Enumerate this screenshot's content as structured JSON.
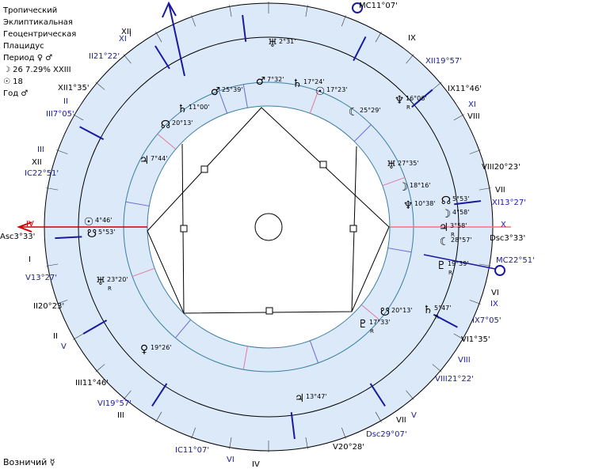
{
  "info": {
    "line1": "Тропический",
    "line2": "Эклиптикальная",
    "line3": "Геоцентрическая",
    "line4": "Плацидус",
    "period_label": "Период",
    "period_glyphs": "♀ ♂",
    "moon_line": "☽  26 7.29% XXIII",
    "sun_line": "☉  18",
    "year_label": "Год",
    "year_glyph": "♂"
  },
  "footer": {
    "label": "Возничий",
    "glyph": "☿"
  },
  "angles": {
    "asc": "Asc3°33'",
    "dsc_right": "Dsc3°33'",
    "mc_top": "MC11°07'",
    "ic_left": "IC22°51'",
    "mc_right": "MC22°51'",
    "ic_bottom": "IC11°07'",
    "dsc_bottom": "Dsc29°07'"
  },
  "outer_cusps": [
    {
      "text": "XI",
      "c": "#1a1aa0"
    },
    {
      "text": "I",
      "c": "#1a1aa0"
    },
    {
      "text": "XII",
      "c": "#000000"
    },
    {
      "text": "II21°22'",
      "c": "#1a1aa0"
    },
    {
      "text": "XII1°35'",
      "c": "#000000"
    },
    {
      "text": "II",
      "c": "#1a1aa0"
    },
    {
      "text": "III7°05'",
      "c": "#1a1aa0"
    },
    {
      "text": "III",
      "c": "#1a1aa0"
    },
    {
      "text": "XII",
      "c": "#000000"
    },
    {
      "text": "IV",
      "c": "#cc0000"
    },
    {
      "text": "I",
      "c": "#000000"
    },
    {
      "text": "V13°27'",
      "c": "#1a1aa0"
    },
    {
      "text": "II20°23'",
      "c": "#000000"
    },
    {
      "text": "II",
      "c": "#000000"
    },
    {
      "text": "V",
      "c": "#1a1aa0"
    },
    {
      "text": "III11°46'",
      "c": "#000000"
    },
    {
      "text": "VI19°57'",
      "c": "#1a1aa0"
    },
    {
      "text": "III",
      "c": "#000000"
    },
    {
      "text": "VI",
      "c": "#1a1aa0"
    },
    {
      "text": "IV",
      "c": "#000000"
    },
    {
      "text": "V20°28'",
      "c": "#000000"
    },
    {
      "text": "VII",
      "c": "#000000"
    },
    {
      "text": "V",
      "c": "#1a1aa0"
    },
    {
      "text": "VIII21°22'",
      "c": "#1a1aa0"
    },
    {
      "text": "VIII",
      "c": "#1a1aa0"
    },
    {
      "text": "VI1°35'",
      "c": "#000000"
    },
    {
      "text": "IX7°05'",
      "c": "#1a1aa0"
    },
    {
      "text": "IX",
      "c": "#1a1aa0"
    },
    {
      "text": "VI",
      "c": "#000000"
    },
    {
      "text": "X",
      "c": "#1a1aa0"
    },
    {
      "text": "XI13°27'",
      "c": "#1a1aa0"
    },
    {
      "text": "VII",
      "c": "#000000"
    },
    {
      "text": "VIII20°23'",
      "c": "#000000"
    },
    {
      "text": "VIII",
      "c": "#000000"
    },
    {
      "text": "XI",
      "c": "#1a1aa0"
    },
    {
      "text": "IX11°46'",
      "c": "#000000"
    },
    {
      "text": "XII19°57'",
      "c": "#1a1aa0"
    },
    {
      "text": "IX",
      "c": "#000000"
    }
  ],
  "zodiac": [
    {
      "glyph": "♈",
      "color": "#ff1a1a"
    },
    {
      "glyph": "♉",
      "color": "#1a50ff"
    },
    {
      "glyph": "♊",
      "color": "#66eaf7"
    },
    {
      "glyph": "♋",
      "color": "#7a1a1a"
    },
    {
      "glyph": "♌",
      "color": "#ff1a1a"
    },
    {
      "glyph": "♍",
      "color": "#1a1aff"
    },
    {
      "glyph": "♎",
      "color": "#9eeefc"
    },
    {
      "glyph": "♏",
      "color": "#1a1aff"
    },
    {
      "glyph": "♐",
      "color": "#ff1a1a"
    },
    {
      "glyph": "♑",
      "color": "#5c4030"
    },
    {
      "glyph": "♒",
      "color": "#9eeefc"
    },
    {
      "glyph": "♓",
      "color": "#1a7ff2"
    }
  ],
  "planets": [
    {
      "glyph": "♅",
      "deg": "2°31'",
      "r": ""
    },
    {
      "glyph": "♂",
      "deg": "7°32'",
      "r": ""
    },
    {
      "glyph": "♄",
      "deg": "17°24'",
      "r": ""
    },
    {
      "glyph": "☉",
      "deg": "17°23'",
      "r": ""
    },
    {
      "glyph": "♆",
      "deg": "16°06'",
      "r": "R"
    },
    {
      "glyph": "☾",
      "deg": "25°29'",
      "r": ""
    },
    {
      "glyph": "♂",
      "deg": "25°39'",
      "r": ""
    },
    {
      "glyph": "♄",
      "deg": "11°00'",
      "r": ""
    },
    {
      "glyph": "☊",
      "deg": "20°13'",
      "r": ""
    },
    {
      "glyph": "♃",
      "deg": "7°44'",
      "r": ""
    },
    {
      "glyph": "♅",
      "deg": "27°35'",
      "r": ""
    },
    {
      "glyph": "☽",
      "deg": "18°16'",
      "r": ""
    },
    {
      "glyph": "♆",
      "deg": "10°38'",
      "r": ""
    },
    {
      "glyph": "☊",
      "deg": "5°53'",
      "r": ""
    },
    {
      "glyph": "☽",
      "deg": "4°58'",
      "r": ""
    },
    {
      "glyph": "♃",
      "deg": "3°58'",
      "r": "R"
    },
    {
      "glyph": "☾",
      "deg": "28°57'",
      "r": ""
    },
    {
      "glyph": "☉",
      "deg": "4°46'",
      "r": ""
    },
    {
      "glyph": "☋",
      "deg": "5°53'",
      "r": ""
    },
    {
      "glyph": "♇",
      "deg": "19°39'",
      "r": "R"
    },
    {
      "glyph": "♅",
      "deg": "23°20'",
      "r": "R"
    },
    {
      "glyph": "♀",
      "deg": "19°26'",
      "r": ""
    },
    {
      "glyph": "♃",
      "deg": "13°47'",
      "r": ""
    },
    {
      "glyph": "☋",
      "deg": "20°13'",
      "r": ""
    },
    {
      "glyph": "♄",
      "deg": "5°47'",
      "r": "R"
    },
    {
      "glyph": "♇",
      "deg": "17°33'",
      "r": "R"
    }
  ],
  "colors": {
    "ring_light": "#dce9f8",
    "center": "#ffffff",
    "line": "#000000",
    "axis_red": "#cc0000",
    "axis_blue": "#1a1aa0"
  }
}
